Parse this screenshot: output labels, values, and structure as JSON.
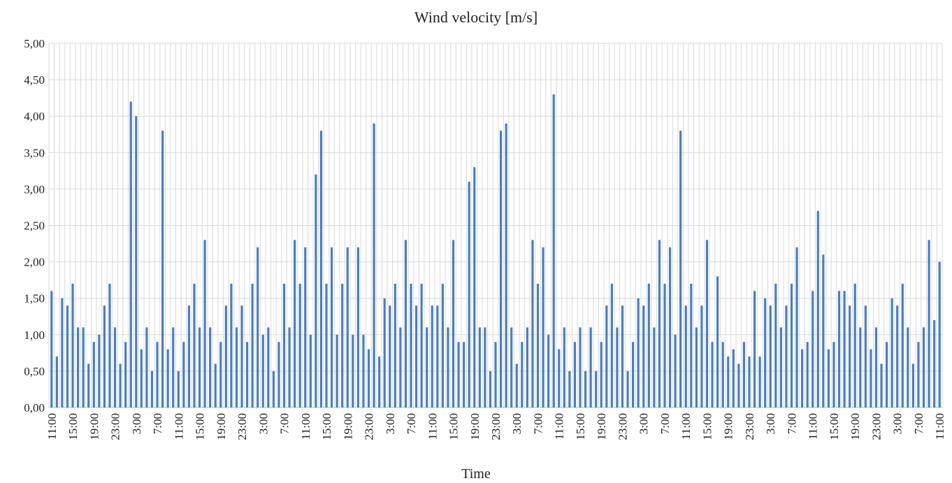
{
  "chart_data": {
    "type": "bar",
    "title": "Wind velocity [m/s]",
    "x_label": "Time",
    "color": "#4a7ebb",
    "grid": true,
    "categories": [
      "11:00",
      null,
      null,
      null,
      "15:00",
      null,
      null,
      null,
      "19:00",
      null,
      null,
      null,
      "23:00",
      null,
      null,
      null,
      "3:00",
      null,
      null,
      null,
      "7:00",
      null,
      null,
      null,
      "11:00",
      null,
      null,
      null,
      "15:00",
      null,
      null,
      null,
      "19:00",
      null,
      null,
      null,
      "23:00",
      null,
      null,
      null,
      "3:00",
      null,
      null,
      null,
      "7:00",
      null,
      null,
      null,
      "11:00",
      null,
      null,
      null,
      "15:00",
      null,
      null,
      null,
      "19:00",
      null,
      null,
      null,
      "23:00",
      null,
      null,
      null,
      "3:00",
      null,
      null,
      null,
      "7:00",
      null,
      null,
      null,
      "11:00",
      null,
      null,
      null,
      "15:00",
      null,
      null,
      null,
      "19:00",
      null,
      null,
      null,
      "23:00",
      null,
      null,
      null,
      "3:00",
      null,
      null,
      null,
      "7:00",
      null,
      null,
      null,
      "11:00",
      null,
      null,
      null,
      "15:00",
      null,
      null,
      null,
      "19:00",
      null,
      null,
      null,
      "23:00",
      null,
      null,
      null,
      "3:00",
      null,
      null,
      null,
      "7:00",
      null,
      null,
      null,
      "11:00",
      null,
      null,
      null,
      "15:00",
      null,
      null,
      null,
      "19:00",
      null,
      null,
      null,
      "23:00",
      null,
      null,
      null,
      "3:00",
      null,
      null,
      null,
      "7:00",
      null,
      null,
      null,
      "11:00",
      null,
      null,
      null,
      "15:00",
      null,
      null,
      null,
      "19:00",
      null,
      null,
      null,
      "23:00",
      null,
      null,
      null,
      "3:00",
      null,
      null,
      null,
      "7:00",
      null,
      null,
      null,
      "11:00"
    ],
    "values": [
      1.6,
      0.7,
      1.5,
      1.4,
      1.7,
      1.1,
      1.1,
      0.6,
      0.9,
      1.0,
      1.4,
      1.7,
      1.1,
      0.6,
      0.9,
      4.2,
      4.0,
      0.8,
      1.1,
      0.5,
      0.9,
      3.8,
      0.8,
      1.1,
      0.5,
      0.9,
      1.4,
      1.7,
      1.1,
      2.3,
      1.1,
      0.6,
      0.9,
      1.4,
      1.7,
      1.1,
      1.4,
      0.9,
      1.7,
      2.2,
      1.0,
      1.1,
      0.5,
      0.9,
      1.7,
      1.1,
      2.3,
      1.7,
      2.2,
      1.0,
      3.2,
      3.8,
      1.7,
      2.2,
      1.0,
      1.7,
      2.2,
      1.0,
      2.2,
      1.0,
      0.8,
      3.9,
      0.7,
      1.5,
      1.4,
      1.7,
      1.1,
      2.3,
      1.7,
      1.4,
      1.7,
      1.1,
      1.4,
      1.4,
      1.7,
      1.1,
      2.3,
      0.9,
      0.9,
      3.1,
      3.3,
      1.1,
      1.1,
      0.5,
      0.9,
      3.8,
      3.9,
      1.1,
      0.6,
      0.9,
      1.1,
      2.3,
      1.7,
      2.2,
      1.0,
      4.3,
      0.8,
      1.1,
      0.5,
      0.9,
      1.1,
      0.5,
      1.1,
      0.5,
      0.9,
      1.4,
      1.7,
      1.1,
      1.4,
      0.5,
      0.9,
      1.5,
      1.4,
      1.7,
      1.1,
      2.3,
      1.7,
      2.2,
      1.0,
      3.8,
      1.4,
      1.7,
      1.1,
      1.4,
      2.3,
      0.9,
      1.8,
      0.9,
      0.7,
      0.8,
      0.6,
      0.9,
      0.7,
      1.6,
      0.7,
      1.5,
      1.4,
      1.7,
      1.1,
      1.4,
      1.7,
      2.2,
      0.8,
      0.9,
      1.6,
      2.7,
      2.1,
      0.8,
      0.9,
      1.6,
      1.6,
      1.4,
      1.7,
      1.1,
      1.4,
      0.8,
      1.1,
      0.6,
      0.9,
      1.5,
      1.4,
      1.7,
      1.1,
      0.6,
      0.9,
      1.1,
      2.3,
      1.2,
      2.0
    ],
    "ylim": [
      0,
      5
    ],
    "yticks": [
      {
        "value": 0,
        "label": "0,00"
      },
      {
        "value": 0.5,
        "label": "0,50"
      },
      {
        "value": 1,
        "label": "1,00"
      },
      {
        "value": 1.5,
        "label": "1,50"
      },
      {
        "value": 2,
        "label": "2,00"
      },
      {
        "value": 2.5,
        "label": "2,50"
      },
      {
        "value": 3,
        "label": "3,00"
      },
      {
        "value": 3.5,
        "label": "3,50"
      },
      {
        "value": 4,
        "label": "4,00"
      },
      {
        "value": 4.5,
        "label": "4,50"
      },
      {
        "value": 5,
        "label": "5,00"
      }
    ]
  }
}
